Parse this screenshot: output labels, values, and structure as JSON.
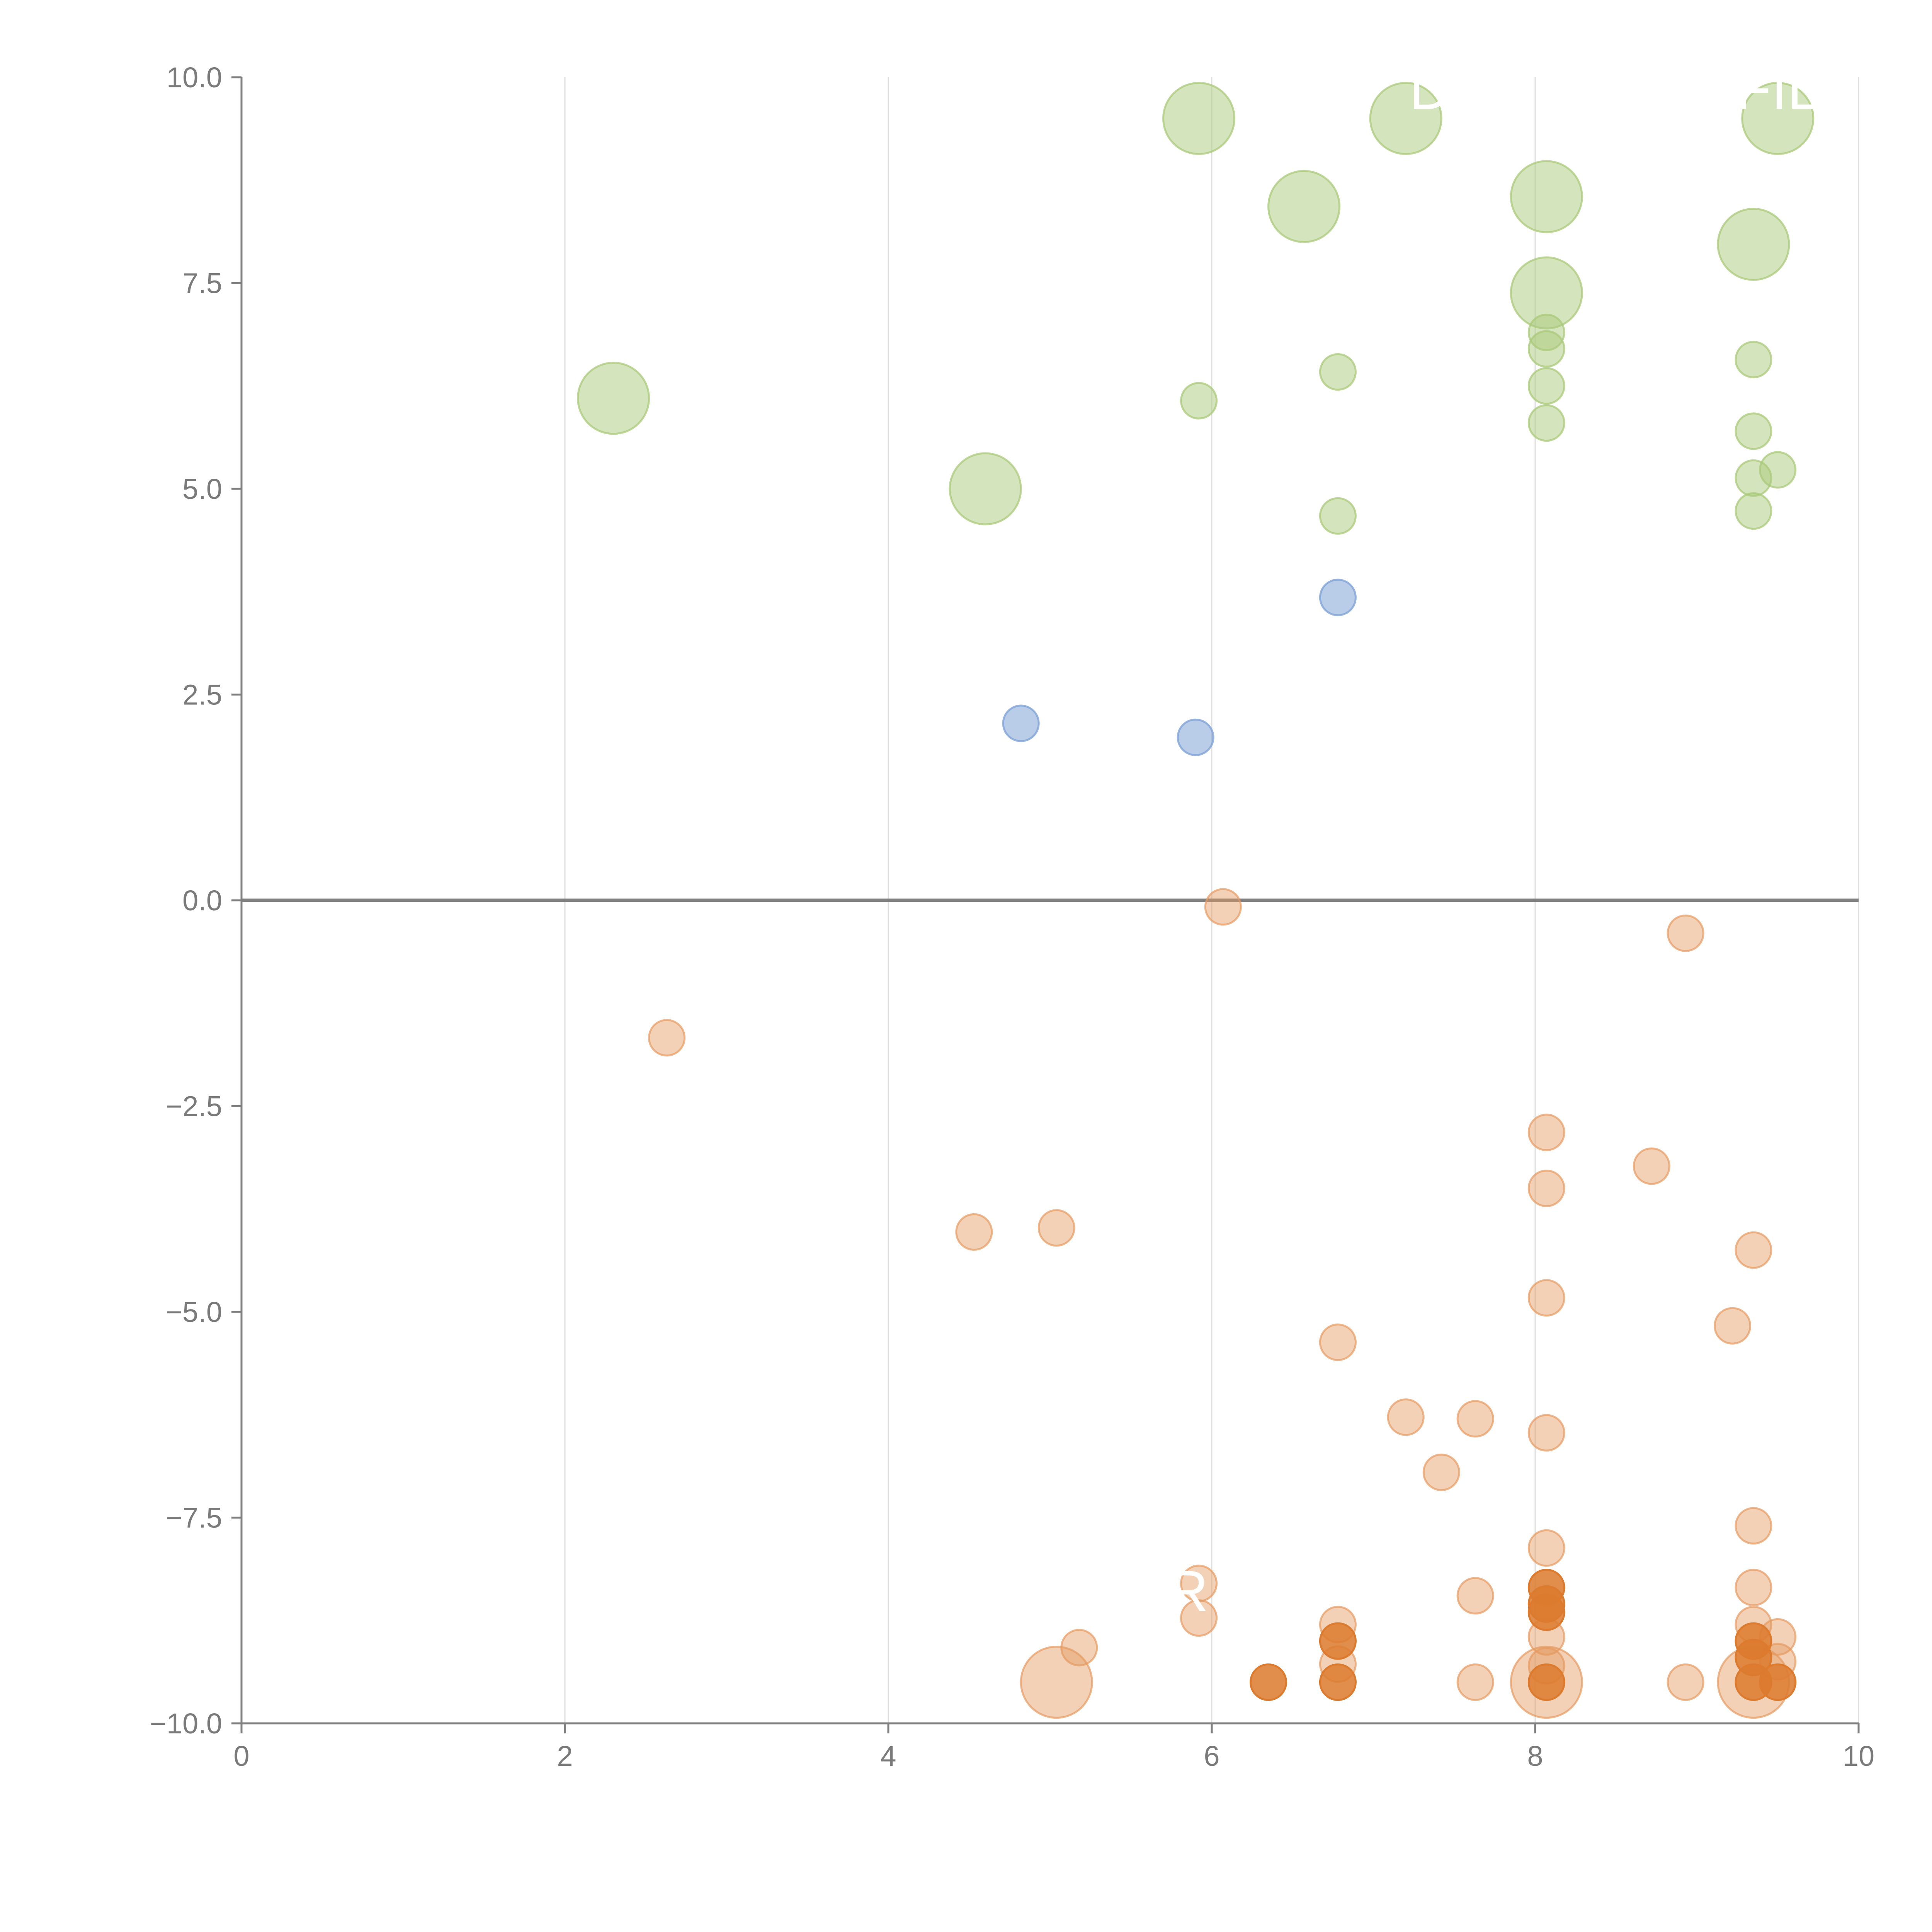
{
  "chart_data": {
    "type": "scatter",
    "title": "",
    "xlabel": "",
    "ylabel": "",
    "xlim": [
      0,
      10
    ],
    "ylim": [
      -10,
      10
    ],
    "grid": {
      "vertical": true,
      "horizontal": false
    },
    "zero_line": true,
    "x_ticks": [
      0,
      2,
      4,
      6,
      8,
      10
    ],
    "x_tick_labels": [
      "0",
      "2",
      "4",
      "6",
      "8",
      "10"
    ],
    "y_ticks": [
      10,
      7.5,
      5,
      2.5,
      0,
      -2.5,
      -5,
      -7.5,
      -10
    ],
    "y_tick_labels": [
      "10.0",
      "7.5",
      "5.0",
      "2.5",
      "0.0",
      "−2.5",
      "−5.0",
      "−7.5",
      "−10.0"
    ],
    "colors": {
      "green": "#a9c97a",
      "blue": "#7fa2d6",
      "orange": "#e59a5f",
      "orange_dark": "#dc7a2e"
    },
    "size_scale": {
      "large": 1.0,
      "medium": 0.55,
      "small": 0.3
    },
    "annotations": [
      {
        "text": "D",
        "x": 7.35,
        "y": 9.85
      },
      {
        "text": "FIL",
        "x": 9.5,
        "y": 9.85
      },
      {
        "text": "R",
        "x": 5.85,
        "y": -8.4
      }
    ],
    "series": [
      {
        "name": "green",
        "color": "green",
        "opacity": 0.5,
        "points": [
          {
            "x": 5.92,
            "y": 9.5,
            "size": "large"
          },
          {
            "x": 7.2,
            "y": 9.5,
            "size": "large"
          },
          {
            "x": 9.5,
            "y": 9.5,
            "size": "large"
          },
          {
            "x": 6.57,
            "y": 8.43,
            "size": "large"
          },
          {
            "x": 8.07,
            "y": 8.55,
            "size": "large"
          },
          {
            "x": 9.35,
            "y": 7.97,
            "size": "large"
          },
          {
            "x": 8.07,
            "y": 7.38,
            "size": "large"
          },
          {
            "x": 2.3,
            "y": 6.1,
            "size": "large"
          },
          {
            "x": 4.6,
            "y": 5.0,
            "size": "large"
          },
          {
            "x": 8.07,
            "y": 6.9,
            "size": "small"
          },
          {
            "x": 8.07,
            "y": 6.7,
            "size": "small"
          },
          {
            "x": 6.78,
            "y": 6.42,
            "size": "small"
          },
          {
            "x": 9.35,
            "y": 6.57,
            "size": "small"
          },
          {
            "x": 8.07,
            "y": 6.25,
            "size": "small"
          },
          {
            "x": 5.92,
            "y": 6.07,
            "size": "small"
          },
          {
            "x": 8.07,
            "y": 5.8,
            "size": "small"
          },
          {
            "x": 9.35,
            "y": 5.7,
            "size": "small"
          },
          {
            "x": 9.5,
            "y": 5.23,
            "size": "small"
          },
          {
            "x": 9.35,
            "y": 5.13,
            "size": "small"
          },
          {
            "x": 9.35,
            "y": 4.73,
            "size": "small"
          },
          {
            "x": 6.78,
            "y": 4.67,
            "size": "small"
          }
        ]
      },
      {
        "name": "blue",
        "color": "blue",
        "opacity": 0.55,
        "points": [
          {
            "x": 6.78,
            "y": 3.68,
            "size": "small"
          },
          {
            "x": 4.82,
            "y": 2.15,
            "size": "small"
          },
          {
            "x": 5.9,
            "y": 1.98,
            "size": "small"
          }
        ]
      },
      {
        "name": "orange",
        "color": "orange",
        "opacity": 0.45,
        "points": [
          {
            "x": 6.07,
            "y": -0.08,
            "size": "small"
          },
          {
            "x": 8.93,
            "y": -0.4,
            "size": "small"
          },
          {
            "x": 2.63,
            "y": -1.67,
            "size": "small"
          },
          {
            "x": 8.07,
            "y": -2.82,
            "size": "small"
          },
          {
            "x": 8.72,
            "y": -3.23,
            "size": "small"
          },
          {
            "x": 8.07,
            "y": -3.5,
            "size": "small"
          },
          {
            "x": 4.53,
            "y": -4.03,
            "size": "small"
          },
          {
            "x": 5.04,
            "y": -3.98,
            "size": "small"
          },
          {
            "x": 9.35,
            "y": -4.25,
            "size": "small"
          },
          {
            "x": 8.07,
            "y": -4.83,
            "size": "small"
          },
          {
            "x": 9.22,
            "y": -5.17,
            "size": "small"
          },
          {
            "x": 6.78,
            "y": -5.37,
            "size": "small"
          },
          {
            "x": 7.2,
            "y": -6.28,
            "size": "small"
          },
          {
            "x": 7.63,
            "y": -6.3,
            "size": "small"
          },
          {
            "x": 8.07,
            "y": -6.47,
            "size": "small"
          },
          {
            "x": 7.42,
            "y": -6.95,
            "size": "small"
          },
          {
            "x": 9.35,
            "y": -7.6,
            "size": "small"
          },
          {
            "x": 8.07,
            "y": -7.87,
            "size": "small"
          },
          {
            "x": 5.92,
            "y": -8.3,
            "size": "small"
          },
          {
            "x": 9.35,
            "y": -8.35,
            "size": "small"
          },
          {
            "x": 7.63,
            "y": -8.45,
            "size": "small"
          },
          {
            "x": 5.92,
            "y": -8.72,
            "size": "small"
          },
          {
            "x": 6.78,
            "y": -8.8,
            "size": "small"
          },
          {
            "x": 9.35,
            "y": -8.8,
            "size": "small"
          },
          {
            "x": 9.5,
            "y": -8.95,
            "size": "small"
          },
          {
            "x": 8.07,
            "y": -8.95,
            "size": "small"
          },
          {
            "x": 5.18,
            "y": -9.08,
            "size": "small"
          },
          {
            "x": 9.5,
            "y": -9.25,
            "size": "small"
          },
          {
            "x": 6.78,
            "y": -9.28,
            "size": "small"
          },
          {
            "x": 5.04,
            "y": -9.5,
            "size": "large"
          },
          {
            "x": 8.07,
            "y": -9.5,
            "size": "large"
          },
          {
            "x": 9.35,
            "y": -9.5,
            "size": "large"
          },
          {
            "x": 7.63,
            "y": -9.5,
            "size": "small"
          },
          {
            "x": 8.93,
            "y": -9.5,
            "size": "small"
          },
          {
            "x": 8.07,
            "y": -9.3,
            "size": "small"
          }
        ]
      },
      {
        "name": "orange-dark",
        "color": "orange_dark",
        "opacity": 0.85,
        "points": [
          {
            "x": 8.07,
            "y": -8.35,
            "size": "small"
          },
          {
            "x": 8.07,
            "y": -8.55,
            "size": "small"
          },
          {
            "x": 8.07,
            "y": -8.65,
            "size": "small"
          },
          {
            "x": 6.78,
            "y": -9.0,
            "size": "small"
          },
          {
            "x": 9.35,
            "y": -9.0,
            "size": "small"
          },
          {
            "x": 9.35,
            "y": -9.2,
            "size": "small"
          },
          {
            "x": 6.35,
            "y": -9.5,
            "size": "small"
          },
          {
            "x": 6.78,
            "y": -9.5,
            "size": "small"
          },
          {
            "x": 8.07,
            "y": -9.5,
            "size": "small"
          },
          {
            "x": 9.35,
            "y": -9.5,
            "size": "small"
          },
          {
            "x": 9.5,
            "y": -9.5,
            "size": "small"
          }
        ]
      }
    ]
  }
}
